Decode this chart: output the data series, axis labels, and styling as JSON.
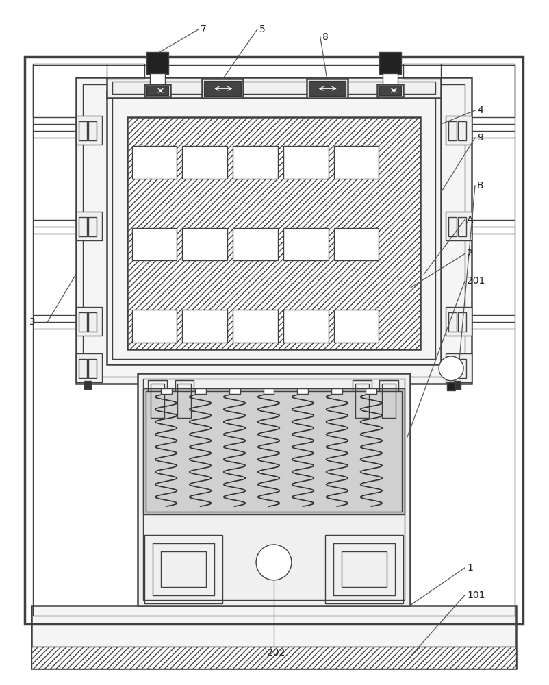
{
  "bg_color": "#ffffff",
  "lc": "#404040",
  "lc_thin": "#606060",
  "lc_label": "#333333",
  "gray_fill": "#c8c8c8",
  "dark_fill": "#555555",
  "light_gray": "#eeeeee",
  "hatch_gray": "#d0d0d0"
}
